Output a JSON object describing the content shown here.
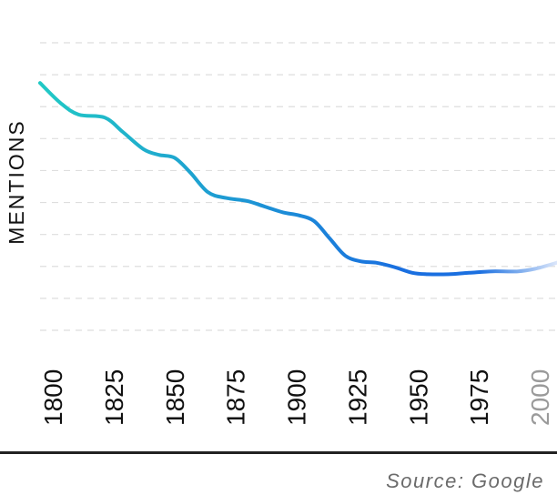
{
  "chart_data": {
    "type": "line",
    "title": "",
    "xlabel": "",
    "ylabel": "MENTIONS",
    "x_ticks": [
      "1800",
      "1825",
      "1850",
      "1875",
      "1900",
      "1925",
      "1950",
      "1975",
      "2000"
    ],
    "xlim": [
      1800,
      2000
    ],
    "ylim": [
      0,
      10
    ],
    "grid": true,
    "series": [
      {
        "x": [
          1800,
          1808,
          1815,
          1825,
          1832,
          1840,
          1846,
          1852,
          1858,
          1865,
          1872,
          1880,
          1887,
          1894,
          1900,
          1906,
          1912,
          1918,
          1924,
          1930,
          1937,
          1944,
          1950,
          1958,
          1966,
          1975,
          1985,
          1992,
          2000
        ],
        "y": [
          8.6,
          7.9,
          7.5,
          7.4,
          6.9,
          6.3,
          6.1,
          6.0,
          5.5,
          4.8,
          4.6,
          4.5,
          4.3,
          4.1,
          4.0,
          3.8,
          3.2,
          2.6,
          2.4,
          2.35,
          2.2,
          2.0,
          1.95,
          1.95,
          2.0,
          2.05,
          2.05,
          2.15,
          2.35
        ]
      }
    ],
    "colors": {
      "start": "#22d3c2",
      "end": "#1a6fe0",
      "fade": "#dbe6fa",
      "grid": "#dedede",
      "tick": "#111111",
      "tick_last": "#9a9a9a"
    }
  },
  "footer": {
    "source": "Source: Google"
  }
}
